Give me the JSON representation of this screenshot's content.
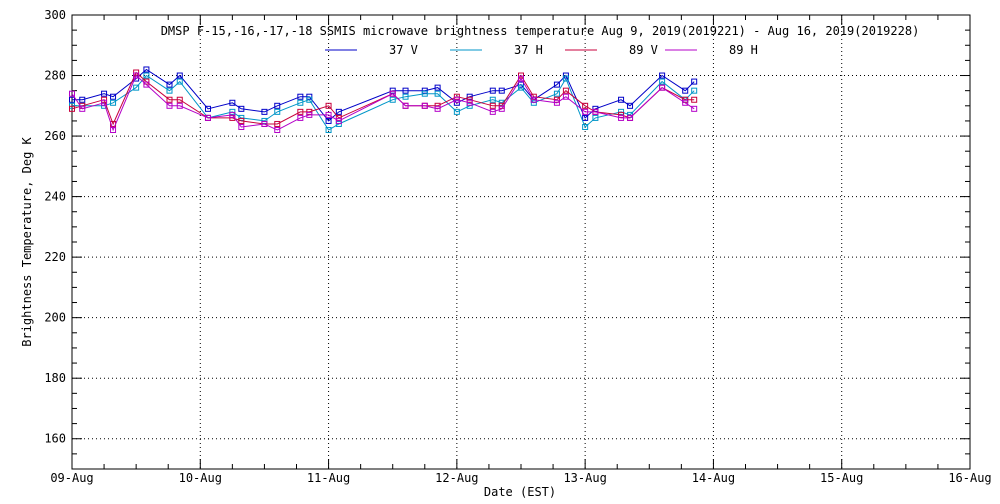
{
  "chart_data": {
    "type": "line",
    "title": "DMSP F-15,-16,-17,-18 SSMIS microwave brightness temperature Aug  9, 2019(2019221) - Aug 16, 2019(2019228)",
    "xlabel": "Date (EST)",
    "ylabel": "Brightness Temperature, Deg K",
    "xlim": [
      0,
      7
    ],
    "ylim": [
      150,
      300
    ],
    "x_tick_labels": [
      "09-Aug",
      "10-Aug",
      "11-Aug",
      "12-Aug",
      "13-Aug",
      "14-Aug",
      "15-Aug",
      "16-Aug"
    ],
    "y_ticks": [
      160,
      180,
      200,
      220,
      240,
      260,
      280,
      300
    ],
    "grid": true,
    "legend_position": "top",
    "series": [
      {
        "name": "37 V",
        "color": "#0000c8",
        "points": [
          [
            0.0,
            272
          ],
          [
            0.08,
            272
          ],
          [
            0.25,
            274
          ],
          [
            0.32,
            273
          ],
          [
            0.5,
            279
          ],
          [
            0.58,
            282
          ],
          [
            0.76,
            277
          ],
          [
            0.84,
            280
          ],
          [
            1.06,
            269
          ],
          [
            1.25,
            271
          ],
          [
            1.32,
            269
          ],
          [
            1.5,
            268
          ],
          [
            1.6,
            270
          ],
          [
            1.78,
            273
          ],
          [
            1.85,
            273
          ],
          [
            2.0,
            265
          ],
          [
            2.08,
            268
          ],
          [
            2.5,
            275
          ],
          [
            2.6,
            275
          ],
          [
            2.75,
            275
          ],
          [
            2.85,
            276
          ],
          [
            3.0,
            271
          ],
          [
            3.1,
            273
          ],
          [
            3.28,
            275
          ],
          [
            3.35,
            275
          ],
          [
            3.5,
            277
          ],
          [
            3.6,
            272
          ],
          [
            3.78,
            277
          ],
          [
            3.85,
            280
          ],
          [
            4.0,
            266
          ],
          [
            4.08,
            269
          ],
          [
            4.28,
            272
          ],
          [
            4.35,
            270
          ],
          [
            4.6,
            280
          ],
          [
            4.78,
            275
          ],
          [
            4.85,
            278
          ]
        ]
      },
      {
        "name": "37 H",
        "color": "#0096c8",
        "points": [
          [
            0.0,
            270
          ],
          [
            0.08,
            270
          ],
          [
            0.25,
            270
          ],
          [
            0.32,
            271
          ],
          [
            0.5,
            276
          ],
          [
            0.58,
            280
          ],
          [
            0.76,
            275
          ],
          [
            0.84,
            278
          ],
          [
            1.06,
            266
          ],
          [
            1.25,
            268
          ],
          [
            1.32,
            266
          ],
          [
            1.5,
            265
          ],
          [
            1.6,
            268
          ],
          [
            1.78,
            271
          ],
          [
            1.85,
            272
          ],
          [
            2.0,
            262
          ],
          [
            2.08,
            264
          ],
          [
            2.5,
            272
          ],
          [
            2.6,
            273
          ],
          [
            2.75,
            274
          ],
          [
            2.85,
            274
          ],
          [
            3.0,
            268
          ],
          [
            3.1,
            270
          ],
          [
            3.28,
            272
          ],
          [
            3.35,
            271
          ],
          [
            3.5,
            276
          ],
          [
            3.6,
            271
          ],
          [
            3.78,
            274
          ],
          [
            3.85,
            279
          ],
          [
            4.0,
            263
          ],
          [
            4.08,
            266
          ],
          [
            4.28,
            268
          ],
          [
            4.35,
            267
          ],
          [
            4.6,
            278
          ],
          [
            4.78,
            272
          ],
          [
            4.85,
            275
          ]
        ]
      },
      {
        "name": "89 V",
        "color": "#c8003c",
        "points": [
          [
            0.0,
            269
          ],
          [
            0.08,
            270
          ],
          [
            0.25,
            272
          ],
          [
            0.32,
            264
          ],
          [
            0.5,
            281
          ],
          [
            0.58,
            278
          ],
          [
            0.76,
            272
          ],
          [
            0.84,
            272
          ],
          [
            1.06,
            266
          ],
          [
            1.25,
            266
          ],
          [
            1.32,
            265
          ],
          [
            1.5,
            264
          ],
          [
            1.6,
            264
          ],
          [
            1.78,
            268
          ],
          [
            1.85,
            268
          ],
          [
            2.0,
            270
          ],
          [
            2.08,
            266
          ],
          [
            2.5,
            274
          ],
          [
            2.6,
            270
          ],
          [
            2.75,
            270
          ],
          [
            2.85,
            270
          ],
          [
            3.0,
            273
          ],
          [
            3.1,
            272
          ],
          [
            3.28,
            270
          ],
          [
            3.35,
            270
          ],
          [
            3.5,
            280
          ],
          [
            3.6,
            273
          ],
          [
            3.78,
            272
          ],
          [
            3.85,
            275
          ],
          [
            4.0,
            270
          ],
          [
            4.08,
            268
          ],
          [
            4.28,
            267
          ],
          [
            4.35,
            266
          ],
          [
            4.6,
            276
          ],
          [
            4.78,
            272
          ],
          [
            4.85,
            272
          ]
        ]
      },
      {
        "name": "89 H",
        "color": "#b400c8",
        "points": [
          [
            0.0,
            274
          ],
          [
            0.08,
            269
          ],
          [
            0.25,
            271
          ],
          [
            0.32,
            262
          ],
          [
            0.5,
            280
          ],
          [
            0.58,
            277
          ],
          [
            0.76,
            270
          ],
          [
            0.84,
            270
          ],
          [
            1.06,
            266
          ],
          [
            1.25,
            267
          ],
          [
            1.32,
            263
          ],
          [
            1.5,
            264
          ],
          [
            1.6,
            262
          ],
          [
            1.78,
            266
          ],
          [
            1.85,
            267
          ],
          [
            2.0,
            267
          ],
          [
            2.08,
            265
          ],
          [
            2.5,
            274
          ],
          [
            2.6,
            270
          ],
          [
            2.75,
            270
          ],
          [
            2.85,
            269
          ],
          [
            3.0,
            272
          ],
          [
            3.1,
            271
          ],
          [
            3.28,
            268
          ],
          [
            3.35,
            269
          ],
          [
            3.5,
            279
          ],
          [
            3.6,
            272
          ],
          [
            3.78,
            271
          ],
          [
            3.85,
            273
          ],
          [
            4.0,
            268
          ],
          [
            4.08,
            268
          ],
          [
            4.28,
            266
          ],
          [
            4.35,
            266
          ],
          [
            4.6,
            276
          ],
          [
            4.78,
            271
          ],
          [
            4.85,
            269
          ]
        ]
      }
    ]
  }
}
